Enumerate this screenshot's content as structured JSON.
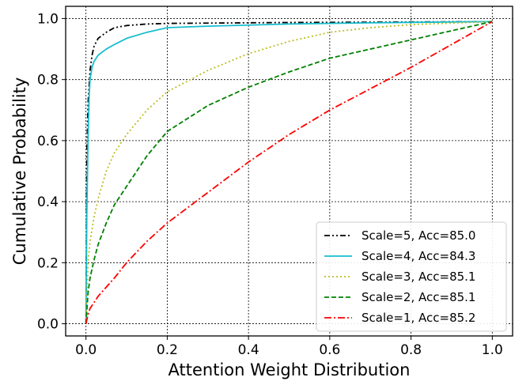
{
  "chart_data": {
    "type": "line",
    "title": "",
    "xlabel": "Attention Weight Distribution",
    "ylabel": "Cumulative Probability",
    "xlim": [
      -0.05,
      1.05
    ],
    "ylim": [
      -0.04,
      1.04
    ],
    "xticks": [
      0.0,
      0.2,
      0.4,
      0.6,
      0.8,
      1.0
    ],
    "yticks": [
      0.0,
      0.2,
      0.4,
      0.6,
      0.8,
      1.0
    ],
    "xtick_labels": [
      "0.0",
      "0.2",
      "0.4",
      "0.6",
      "0.8",
      "1.0"
    ],
    "ytick_labels": [
      "0.0",
      "0.2",
      "0.4",
      "0.6",
      "0.8",
      "1.0"
    ],
    "grid": true,
    "legend_position": "bottom-right",
    "series": [
      {
        "name": "Scale=5, Acc=85.0",
        "color": "#000000",
        "style": "dashdotdot",
        "x": [
          0.0,
          0.002,
          0.005,
          0.01,
          0.015,
          0.02,
          0.03,
          0.05,
          0.07,
          0.1,
          0.15,
          0.2,
          0.3,
          0.5,
          0.7,
          1.0
        ],
        "y": [
          0.0,
          0.55,
          0.72,
          0.83,
          0.88,
          0.91,
          0.935,
          0.955,
          0.97,
          0.977,
          0.982,
          0.984,
          0.985,
          0.987,
          0.988,
          0.99
        ]
      },
      {
        "name": "Scale=4, Acc=84.3",
        "color": "#17becf",
        "style": "solid",
        "x": [
          0.0,
          0.002,
          0.005,
          0.008,
          0.01,
          0.015,
          0.02,
          0.03,
          0.05,
          0.07,
          0.1,
          0.15,
          0.2,
          0.3,
          0.5,
          0.7,
          1.0
        ],
        "y": [
          0.0,
          0.35,
          0.6,
          0.75,
          0.8,
          0.84,
          0.86,
          0.88,
          0.9,
          0.915,
          0.935,
          0.955,
          0.97,
          0.975,
          0.982,
          0.986,
          0.99
        ]
      },
      {
        "name": "Scale=3, Acc=85.1",
        "color": "#bcbd22",
        "style": "dotted",
        "x": [
          0.0,
          0.005,
          0.01,
          0.02,
          0.03,
          0.05,
          0.07,
          0.1,
          0.15,
          0.2,
          0.3,
          0.4,
          0.5,
          0.6,
          0.7,
          0.8,
          0.9,
          1.0
        ],
        "y": [
          0.0,
          0.2,
          0.27,
          0.35,
          0.41,
          0.5,
          0.56,
          0.62,
          0.7,
          0.76,
          0.83,
          0.885,
          0.925,
          0.955,
          0.97,
          0.98,
          0.985,
          0.99
        ]
      },
      {
        "name": "Scale=2, Acc=85.1",
        "color": "#008000",
        "style": "dashed",
        "x": [
          0.0,
          0.005,
          0.01,
          0.02,
          0.03,
          0.05,
          0.07,
          0.1,
          0.15,
          0.2,
          0.3,
          0.4,
          0.5,
          0.6,
          0.7,
          0.8,
          0.9,
          1.0
        ],
        "y": [
          0.0,
          0.1,
          0.15,
          0.21,
          0.26,
          0.33,
          0.39,
          0.45,
          0.55,
          0.63,
          0.715,
          0.775,
          0.825,
          0.87,
          0.9,
          0.93,
          0.96,
          0.99
        ]
      },
      {
        "name": "Scale=1, Acc=85.2",
        "color": "#ff0000",
        "style": "dashdot",
        "x": [
          0.0,
          0.005,
          0.01,
          0.02,
          0.03,
          0.05,
          0.07,
          0.1,
          0.15,
          0.2,
          0.25,
          0.3,
          0.4,
          0.5,
          0.6,
          0.7,
          0.8,
          0.9,
          1.0
        ],
        "y": [
          0.0,
          0.03,
          0.05,
          0.07,
          0.09,
          0.12,
          0.15,
          0.2,
          0.27,
          0.33,
          0.38,
          0.43,
          0.53,
          0.62,
          0.7,
          0.77,
          0.84,
          0.915,
          0.99
        ]
      }
    ]
  }
}
